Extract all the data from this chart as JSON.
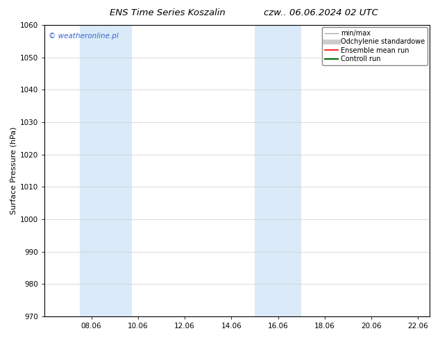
{
  "title_left": "ENS Time Series Koszalin",
  "title_right": "czw.. 06.06.2024 02 UTC",
  "ylabel": "Surface Pressure (hPa)",
  "ylim": [
    970,
    1060
  ],
  "yticks": [
    970,
    980,
    990,
    1000,
    1010,
    1020,
    1030,
    1040,
    1050,
    1060
  ],
  "xlim_start": 6.0,
  "xlim_end": 22.5,
  "xtick_days": [
    8,
    10,
    12,
    14,
    16,
    18,
    20,
    22
  ],
  "xtick_labels": [
    "08.06",
    "10.06",
    "12.06",
    "14.06",
    "16.06",
    "18.06",
    "20.06",
    "22.06"
  ],
  "shade_bands": [
    {
      "xmin": 7.5,
      "xmax": 9.75
    },
    {
      "xmin": 15.0,
      "xmax": 17.0
    }
  ],
  "shade_color": "#daeaf8",
  "watermark": "© weatheronline.pl",
  "watermark_color": "#3366cc",
  "legend_items": [
    {
      "label": "min/max",
      "color": "#aaaaaa",
      "lw": 1.0,
      "style": "solid"
    },
    {
      "label": "Odchylenie standardowe",
      "color": "#cccccc",
      "lw": 5,
      "style": "solid"
    },
    {
      "label": "Ensemble mean run",
      "color": "#ff0000",
      "lw": 1.2,
      "style": "solid"
    },
    {
      "label": "Controll run",
      "color": "#006600",
      "lw": 1.5,
      "style": "solid"
    }
  ],
  "bg_color": "#ffffff",
  "title_fontsize": 9.5,
  "ylabel_fontsize": 8,
  "tick_fontsize": 7.5,
  "watermark_fontsize": 7.5,
  "legend_fontsize": 7.0
}
